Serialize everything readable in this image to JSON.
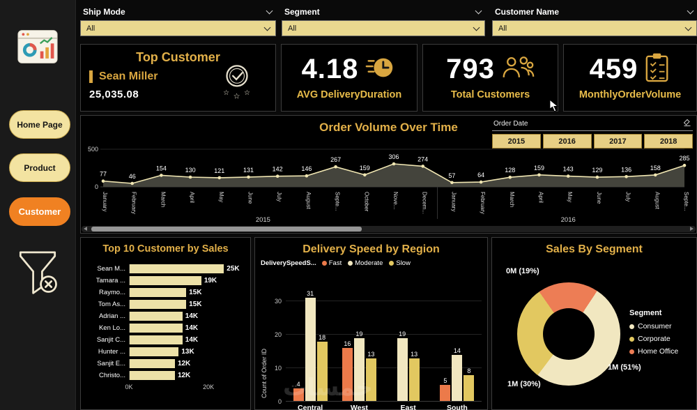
{
  "theme": {
    "gold": "#e2b049",
    "cream": "#ece1a8",
    "pale": "#f1e7c0",
    "yellow": "#e2c860",
    "orange": "#ec7a4a",
    "active_nav": "#f08122"
  },
  "sidebar": {
    "nav": [
      {
        "label": "Home Page",
        "active": false
      },
      {
        "label": "Product",
        "active": false
      },
      {
        "label": "Customer",
        "active": true
      }
    ]
  },
  "filters": [
    {
      "label": "Ship Mode",
      "value": "All"
    },
    {
      "label": "Segment",
      "value": "All"
    },
    {
      "label": "Customer Name",
      "value": "All"
    }
  ],
  "kpis": {
    "top_customer": {
      "title": "Top Customer",
      "name": "Sean Miller",
      "value": "25,035.08"
    },
    "avg_delivery_duration": {
      "value": "4.18",
      "label": "AVG DeliveryDuration"
    },
    "total_customers": {
      "value": "793",
      "label": "Total Customers"
    },
    "monthly_order_volume": {
      "value": "459",
      "label": "MonthlyOrderVolume"
    }
  },
  "order_date_slicer": {
    "title": "Order Date",
    "years": [
      "2015",
      "2016",
      "2017",
      "2018"
    ]
  },
  "watermark": "خمسات",
  "chart_data": [
    {
      "type": "area",
      "title": "Order Volume Over Time",
      "x": [
        "January",
        "February",
        "March",
        "April",
        "May",
        "June",
        "July",
        "August",
        "Septe...",
        "October",
        "Nove...",
        "Decem...",
        "January",
        "February",
        "March",
        "April",
        "May",
        "June",
        "July",
        "August",
        "Septe..."
      ],
      "values": [
        77,
        46,
        154,
        130,
        121,
        131,
        142,
        146,
        267,
        159,
        306,
        274,
        57,
        64,
        128,
        159,
        143,
        129,
        136,
        158,
        285
      ],
      "year_groups": [
        {
          "label": "2015",
          "count": 12
        },
        {
          "label": "2016",
          "count": 9
        }
      ],
      "ylim": [
        0,
        500
      ],
      "yticks": [
        0,
        500
      ],
      "line_color": "#f0e6b2",
      "fill_color": "#44443c",
      "grid": false,
      "legend_position": "none"
    },
    {
      "type": "bar",
      "title": "Top 10 Customer by Sales",
      "orientation": "horizontal",
      "categories": [
        "Sean M...",
        "Tamara ...",
        "Raymo...",
        "Tom As...",
        "Adrian ...",
        "Ken Lo...",
        "Sanjit C...",
        "Hunter ...",
        "Sanjit E...",
        "Christo..."
      ],
      "values": [
        25,
        19,
        15,
        15,
        14,
        14,
        14,
        13,
        12,
        12
      ],
      "value_labels": [
        "25K",
        "19K",
        "15K",
        "15K",
        "14K",
        "14K",
        "14K",
        "13K",
        "12K",
        "12K"
      ],
      "xticks": [
        "0K",
        "20K"
      ],
      "xlim_k": [
        0,
        25
      ],
      "bar_color": "#ece1a8"
    },
    {
      "type": "bar",
      "title": "Delivery Speed by Region",
      "orientation": "vertical-grouped",
      "legend_title": "DeliverySpeedS...",
      "legend_position": "top",
      "ylabel": "Count of Order ID",
      "categories": [
        "Central",
        "West",
        "East",
        "South"
      ],
      "series": [
        {
          "name": "Fast",
          "color": "#ec7a4a",
          "values": [
            4,
            16,
            0,
            5
          ]
        },
        {
          "name": "Moderate",
          "color": "#f1e7c0",
          "values": [
            31,
            19,
            19,
            14
          ]
        },
        {
          "name": "Slow",
          "color": "#e2c860",
          "values": [
            18,
            13,
            13,
            8
          ]
        }
      ],
      "yticks": [
        0,
        10,
        20,
        30
      ],
      "ylim": [
        0,
        33
      ]
    },
    {
      "type": "pie",
      "title": "Sales By Segment",
      "legend_title": "Segment",
      "legend_position": "right",
      "donut_start_deg": 325,
      "slices": [
        {
          "label": "Home Office",
          "pct": 19,
          "value_label": "0M (19%)",
          "color": "#ed7d55"
        },
        {
          "label": "Consumer",
          "pct": 51,
          "value_label": "1M (51%)",
          "color": "#f1e7c0"
        },
        {
          "label": "Corporate",
          "pct": 30,
          "value_label": "1M (30%)",
          "color": "#e2c860"
        }
      ],
      "legend": [
        {
          "label": "Consumer",
          "color": "#f1e7c0"
        },
        {
          "label": "Corporate",
          "color": "#e2c860"
        },
        {
          "label": "Home Office",
          "color": "#ed7d55"
        }
      ]
    }
  ]
}
